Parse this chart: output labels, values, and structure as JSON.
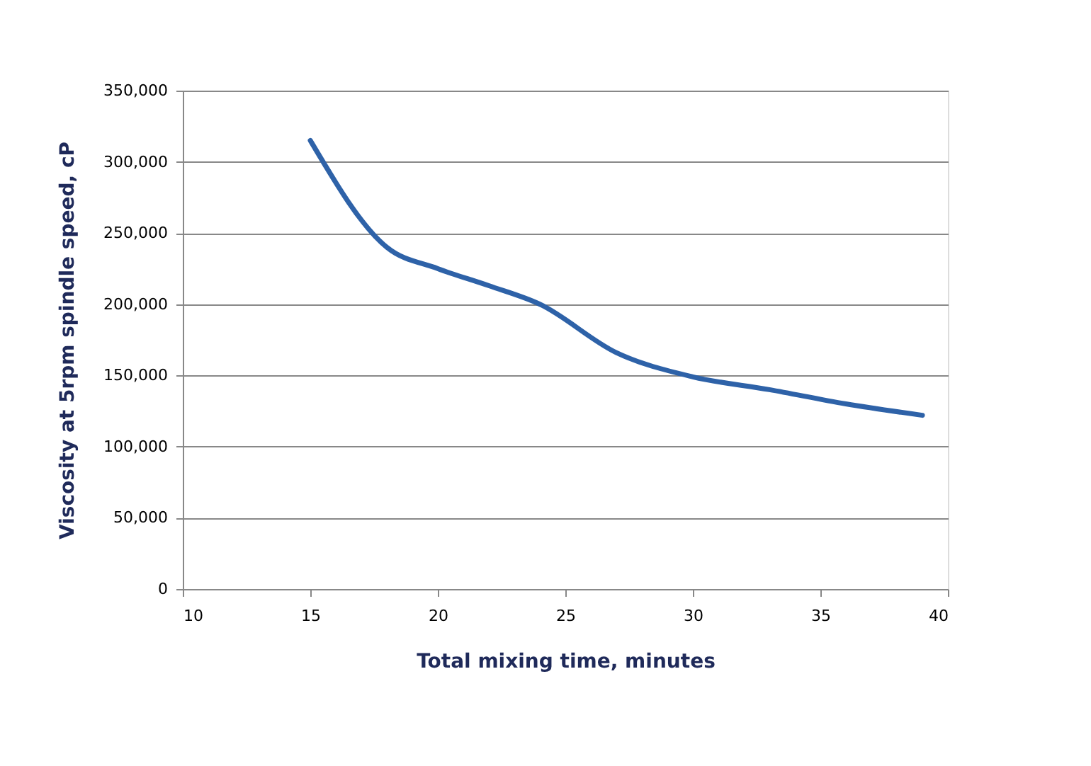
{
  "chart_data": {
    "type": "line",
    "xlabel": "Total mixing time, minutes",
    "ylabel": "Viscosity at 5rpm spindle speed, cP",
    "x": [
      15,
      18,
      20,
      22,
      24,
      27,
      30,
      33,
      36,
      39
    ],
    "series": [
      {
        "color": "#2e62a8",
        "values": [
          315000,
          240000,
          225000,
          213000,
          200000,
          166000,
          149000,
          140000,
          130000,
          122000
        ]
      }
    ],
    "xlim": [
      10,
      40
    ],
    "xticks": [
      10,
      15,
      20,
      25,
      30,
      35,
      40
    ],
    "ylim": [
      0,
      350000
    ],
    "yticks": [
      {
        "value": 0,
        "label": "0"
      },
      {
        "value": 50000,
        "label": "50,000"
      },
      {
        "value": 100000,
        "label": "100,000"
      },
      {
        "value": 150000,
        "label": "150,000"
      },
      {
        "value": 200000,
        "label": "200,000"
      },
      {
        "value": 250000,
        "label": "250,000"
      },
      {
        "value": 300000,
        "label": "300,000"
      },
      {
        "value": 350000,
        "label": "350,000"
      }
    ],
    "grid": "y",
    "legend": false,
    "marker": "none",
    "line_style": "solid"
  }
}
